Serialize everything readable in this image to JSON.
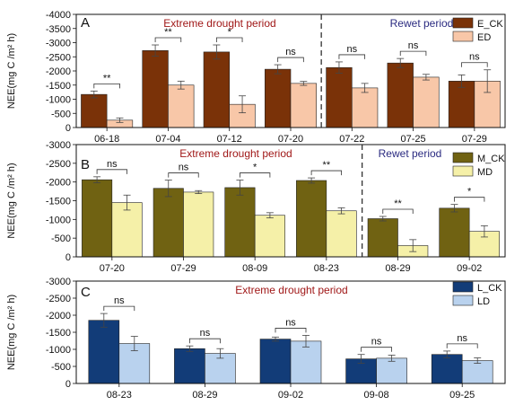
{
  "colors": {
    "ck_A": "#7a3208",
    "tr_A": "#f8c7a8",
    "ck_B": "#706212",
    "tr_B": "#f5f0a8",
    "ck_C": "#123c78",
    "tr_C": "#b9d2ee",
    "drought_text": "#a01818",
    "rewet_text": "#2a2a80"
  },
  "chart_data": [
    {
      "type": "bar",
      "panel": "A",
      "ylabel": "NEE(mg C /m² h)",
      "ylim": [
        0,
        -4000
      ],
      "yticks": [
        0,
        -500,
        -1000,
        -1500,
        -2000,
        -2500,
        -3000,
        -3500,
        -4000
      ],
      "categories": [
        "06-18",
        "07-04",
        "07-12",
        "07-20",
        "07-22",
        "07-25",
        "07-29"
      ],
      "series": [
        {
          "name": "E_CK",
          "values": [
            -1170,
            -2720,
            -2670,
            -2060,
            -2120,
            -2280,
            -1640
          ],
          "errors": [
            120,
            200,
            250,
            160,
            200,
            160,
            220
          ]
        },
        {
          "name": "ED",
          "values": [
            -260,
            -1500,
            -820,
            -1560,
            -1400,
            -1780,
            -1640
          ],
          "errors": [
            80,
            140,
            300,
            70,
            160,
            100,
            400
          ]
        }
      ],
      "significance": [
        "**",
        "**",
        "*",
        "ns",
        "ns",
        "ns",
        "ns"
      ],
      "periods": [
        {
          "label": "Extreme drought period",
          "kind": "drought"
        },
        {
          "label": "Rewet period",
          "kind": "rewet"
        }
      ],
      "divider_after_index": 3,
      "legend_position": "top-right"
    },
    {
      "type": "bar",
      "panel": "B",
      "ylabel": "NEE(mg C /m² h)",
      "ylim": [
        0,
        -3000
      ],
      "yticks": [
        0,
        -500,
        -1000,
        -1500,
        -2000,
        -2500,
        -3000
      ],
      "categories": [
        "07-20",
        "07-29",
        "08-09",
        "08-23",
        "08-29",
        "09-02"
      ],
      "series": [
        {
          "name": "M_CK",
          "values": [
            -2060,
            -1830,
            -1850,
            -2040,
            -1020,
            -1300
          ],
          "errors": [
            80,
            220,
            200,
            70,
            60,
            100
          ]
        },
        {
          "name": "MD",
          "values": [
            -1450,
            -1730,
            -1110,
            -1230,
            -300,
            -680
          ],
          "errors": [
            200,
            40,
            70,
            80,
            160,
            150
          ]
        }
      ],
      "significance": [
        "ns",
        "ns",
        "*",
        "**",
        "**",
        "*"
      ],
      "periods": [
        {
          "label": "Extreme drought period",
          "kind": "drought"
        },
        {
          "label": "Rewet period",
          "kind": "rewet"
        }
      ],
      "divider_after_index": 3,
      "legend_position": "top-right"
    },
    {
      "type": "bar",
      "panel": "C",
      "ylabel": "NEE(mg C /m² h)",
      "ylim": [
        0,
        -3000
      ],
      "yticks": [
        0,
        -500,
        -1000,
        -1500,
        -2000,
        -2500,
        -3000
      ],
      "categories": [
        "08-23",
        "08-29",
        "09-02",
        "09-08",
        "09-25"
      ],
      "series": [
        {
          "name": "L_CK",
          "values": [
            -1850,
            -1020,
            -1300,
            -720,
            -850
          ],
          "errors": [
            200,
            80,
            60,
            130,
            100
          ]
        },
        {
          "name": "LD",
          "values": [
            -1170,
            -880,
            -1240,
            -740,
            -670
          ],
          "errors": [
            210,
            140,
            170,
            90,
            80
          ]
        }
      ],
      "significance": [
        "ns",
        "ns",
        "ns",
        "ns",
        "ns"
      ],
      "periods": [
        {
          "label": "Extreme drought period",
          "kind": "drought"
        }
      ],
      "divider_after_index": null,
      "legend_position": "top-right"
    }
  ]
}
